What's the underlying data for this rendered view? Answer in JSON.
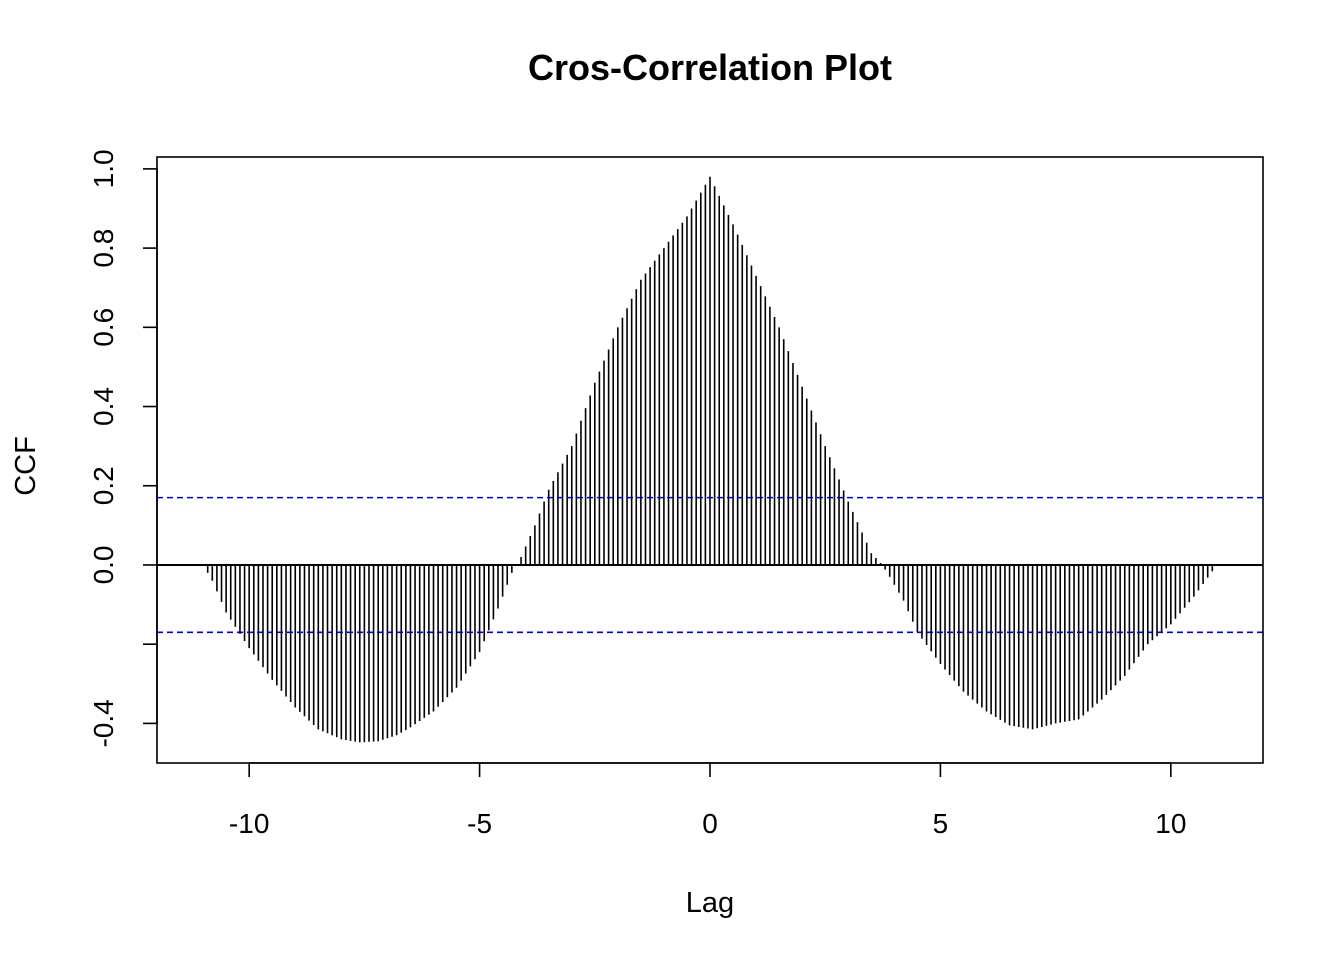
{
  "chart_data": {
    "type": "bar",
    "title": "Cros-Correlation Plot",
    "xlabel": "Lag",
    "ylabel": "CCF",
    "xlim": [
      -12,
      12
    ],
    "ylim": [
      -0.5,
      1.03
    ],
    "x_ticks": [
      -10,
      -5,
      0,
      5,
      10
    ],
    "x_tick_labels": [
      "-10",
      "-5",
      "0",
      "5",
      "10"
    ],
    "y_ticks": [
      -0.4,
      -0.2,
      0.0,
      0.2,
      0.4,
      0.6,
      0.8,
      1.0
    ],
    "y_tick_labels": [
      "-0.4",
      "",
      "0.0",
      "0.2",
      "0.4",
      "0.6",
      "0.8",
      "1.0"
    ],
    "lag_range": [
      -11,
      11
    ],
    "lag_step": 0.1,
    "confidence_level": 0.17,
    "confidence_color": "#0000cc",
    "bar_color": "#000000",
    "shape_points": [
      [
        -11.0,
        0.0
      ],
      [
        -10.8,
        -0.04
      ],
      [
        -10.5,
        -0.12
      ],
      [
        -10.0,
        -0.21
      ],
      [
        -9.5,
        -0.29
      ],
      [
        -9.0,
        -0.36
      ],
      [
        -8.5,
        -0.415
      ],
      [
        -8.0,
        -0.44
      ],
      [
        -7.6,
        -0.448
      ],
      [
        -7.2,
        -0.445
      ],
      [
        -6.8,
        -0.43
      ],
      [
        -6.5,
        -0.41
      ],
      [
        -6.0,
        -0.37
      ],
      [
        -5.5,
        -0.31
      ],
      [
        -5.0,
        -0.22
      ],
      [
        -4.6,
        -0.11
      ],
      [
        -4.3,
        -0.02
      ],
      [
        -4.1,
        0.02
      ],
      [
        -3.8,
        0.1
      ],
      [
        -3.5,
        0.19
      ],
      [
        -3.0,
        0.3
      ],
      [
        -2.5,
        0.46
      ],
      [
        -2.0,
        0.6
      ],
      [
        -1.5,
        0.72
      ],
      [
        -1.0,
        0.8
      ],
      [
        -0.5,
        0.88
      ],
      [
        0.0,
        0.98
      ],
      [
        0.5,
        0.86
      ],
      [
        1.0,
        0.73
      ],
      [
        1.5,
        0.6
      ],
      [
        2.0,
        0.45
      ],
      [
        2.5,
        0.3
      ],
      [
        3.0,
        0.16
      ],
      [
        3.5,
        0.03
      ],
      [
        3.7,
        0.005
      ],
      [
        3.85,
        -0.02
      ],
      [
        4.2,
        -0.09
      ],
      [
        4.5,
        -0.17
      ],
      [
        5.0,
        -0.25
      ],
      [
        5.5,
        -0.32
      ],
      [
        6.0,
        -0.37
      ],
      [
        6.5,
        -0.405
      ],
      [
        7.0,
        -0.415
      ],
      [
        7.5,
        -0.4
      ],
      [
        8.0,
        -0.39
      ],
      [
        8.5,
        -0.34
      ],
      [
        9.0,
        -0.28
      ],
      [
        9.5,
        -0.2
      ],
      [
        10.0,
        -0.15
      ],
      [
        10.5,
        -0.08
      ],
      [
        11.0,
        0.0
      ]
    ]
  }
}
